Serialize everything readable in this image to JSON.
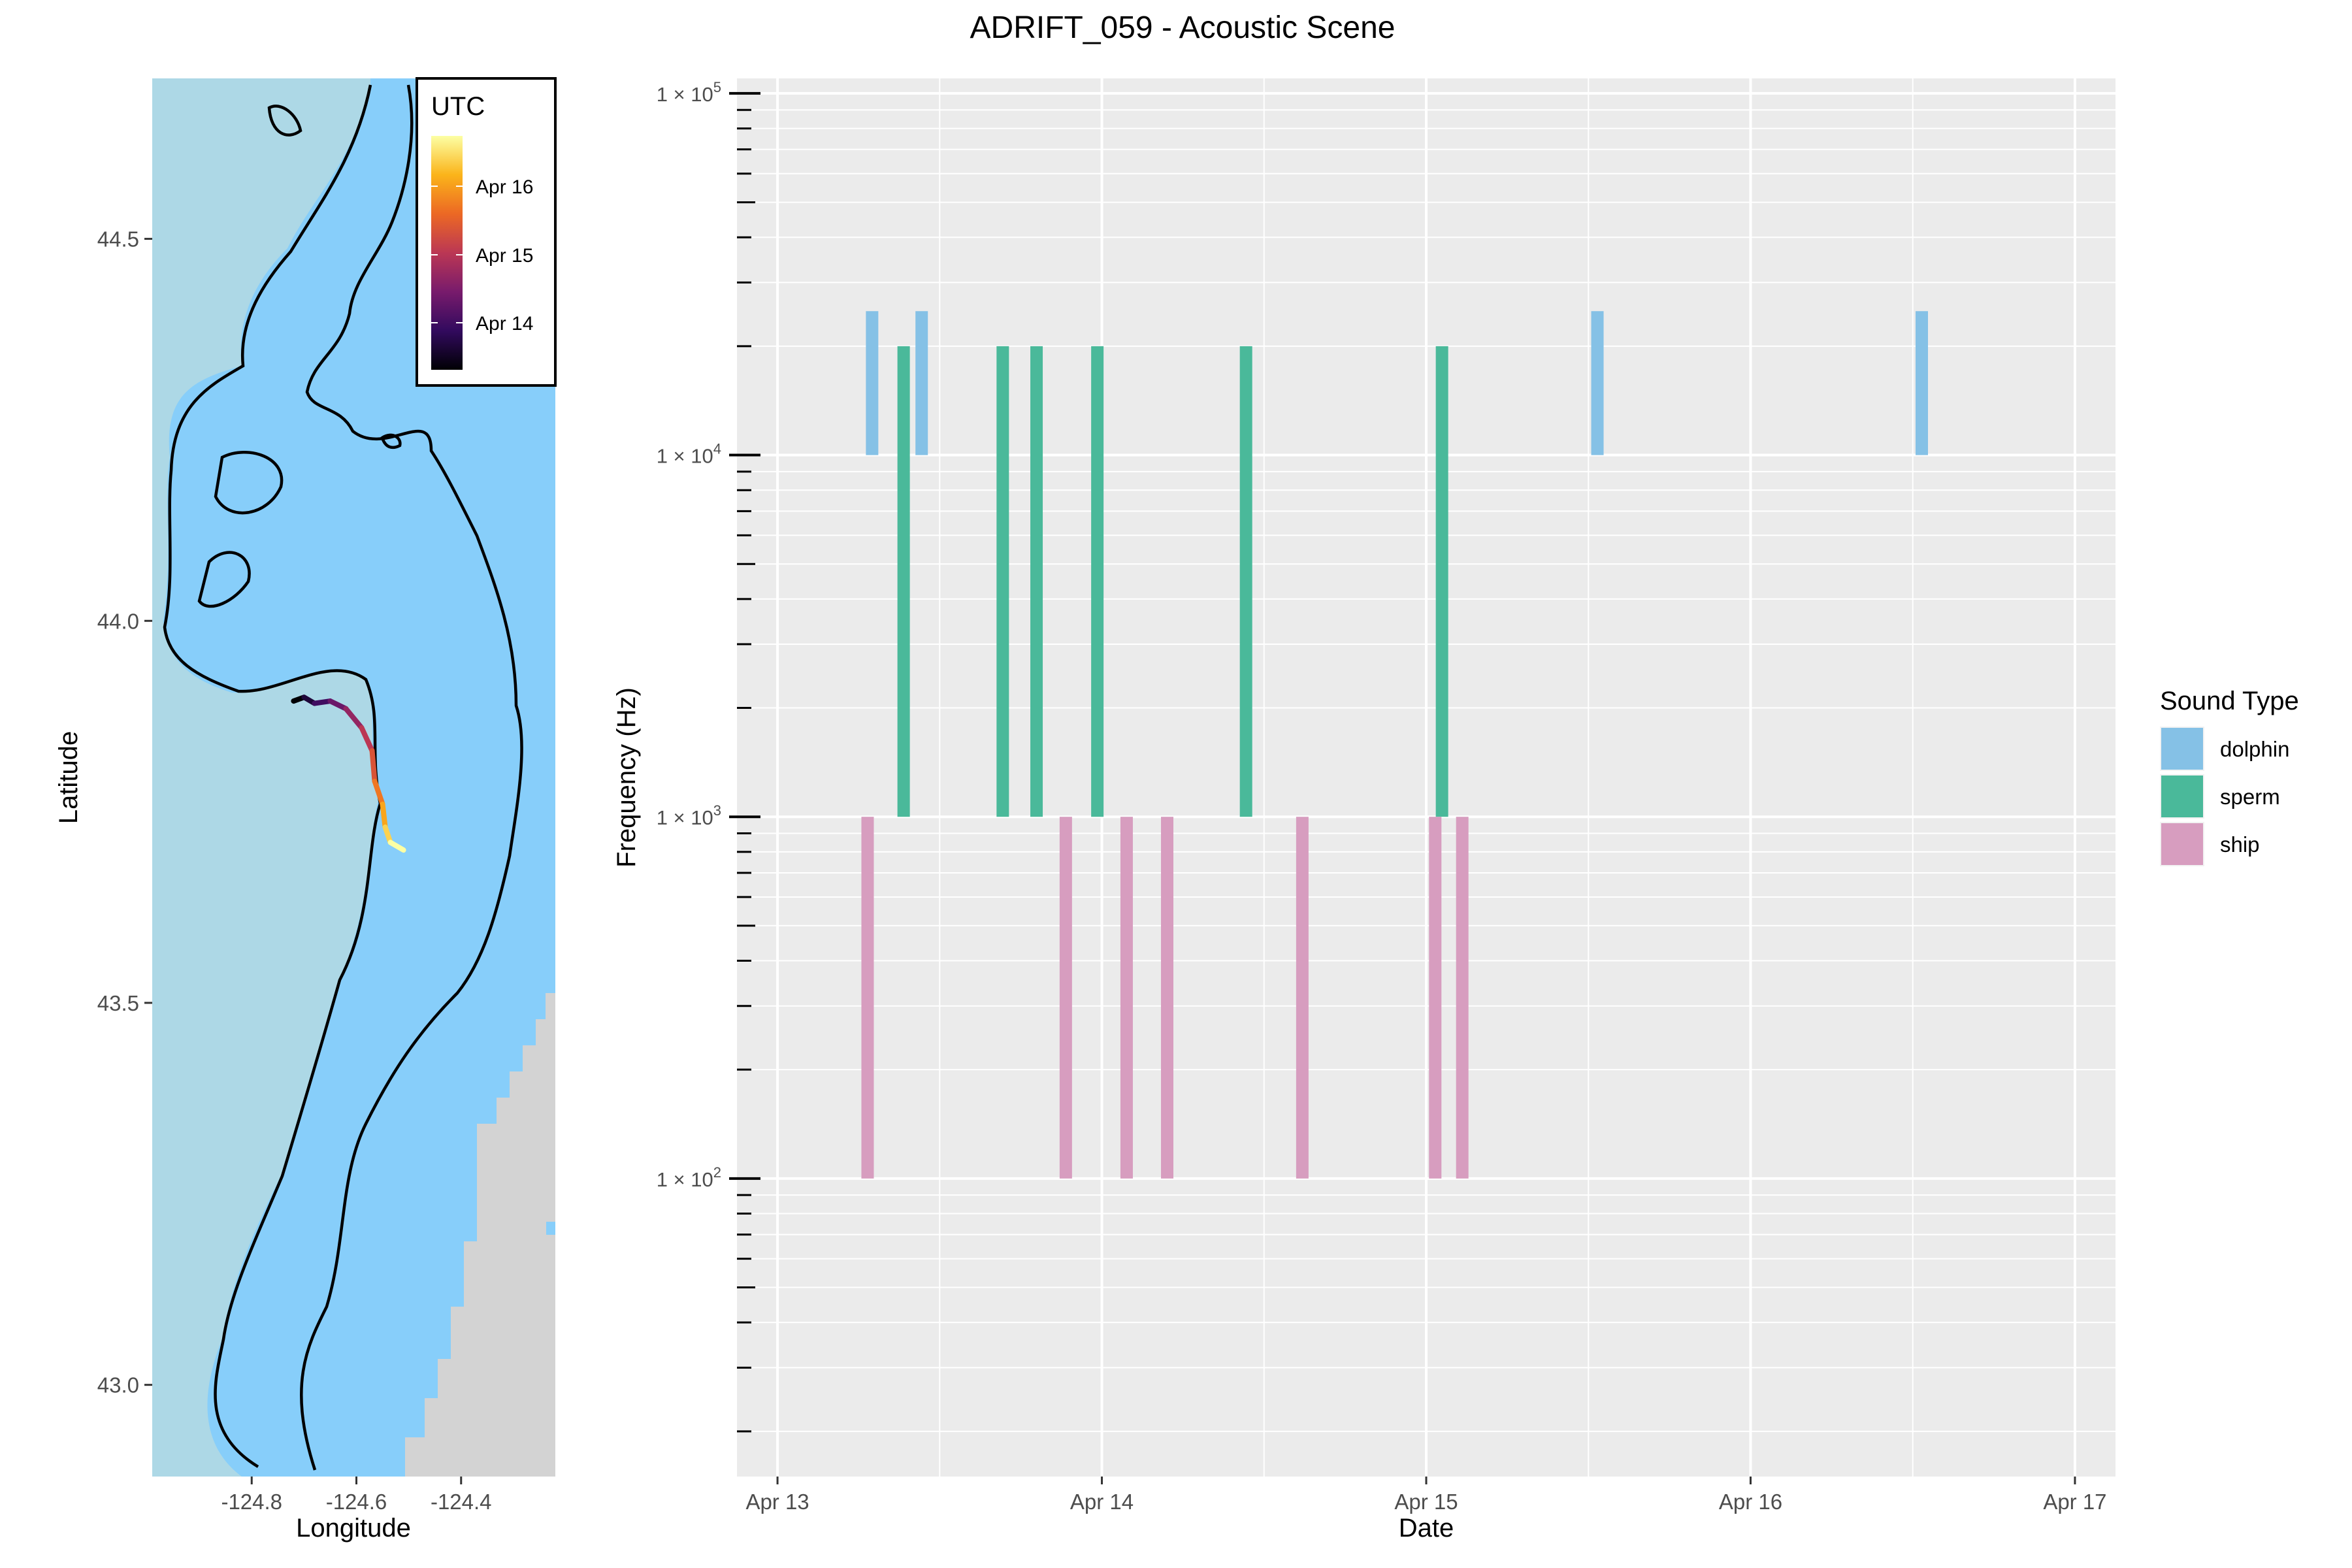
{
  "title": "ADRIFT_059 - Acoustic Scene",
  "colors": {
    "ocean": "#87CEFA",
    "land_shelf": "#ADD8E6",
    "land_grey": "#D3D3D3",
    "panel_bg": "#EBEBEB",
    "grid": "#FFFFFF",
    "dolphin": "#85C1E6",
    "sperm": "#4AB99A",
    "ship": "#D79DBF"
  },
  "chart_data": [
    {
      "type": "map",
      "xlabel": "Longitude",
      "ylabel": "Latitude",
      "xlim": [
        -124.99,
        -124.22
      ],
      "ylim": [
        42.88,
        44.71
      ],
      "x_ticks": [
        {
          "value": -124.8,
          "label": "-124.8"
        },
        {
          "value": -124.6,
          "label": "-124.6"
        },
        {
          "value": -124.4,
          "label": "-124.4"
        }
      ],
      "y_ticks": [
        {
          "value": 43.0,
          "label": "43.0"
        },
        {
          "value": 43.5,
          "label": "43.5"
        },
        {
          "value": 44.0,
          "label": "44.0"
        },
        {
          "value": 44.5,
          "label": "44.5"
        }
      ],
      "legend": {
        "title": "UTC",
        "placement": "top-right inside",
        "labels": [
          "Apr 16",
          "Apr 15",
          "Apr 14"
        ],
        "gradient": [
          "#000004",
          "#320A5E",
          "#781B6C",
          "#BB3754",
          "#EC6824",
          "#FBB41A",
          "#FCFFA4"
        ]
      },
      "drift_track": [
        [
          -124.72,
          43.895
        ],
        [
          -124.7,
          43.9
        ],
        [
          -124.68,
          43.892
        ],
        [
          -124.65,
          43.895
        ],
        [
          -124.62,
          43.885
        ],
        [
          -124.59,
          43.86
        ],
        [
          -124.57,
          43.83
        ],
        [
          -124.565,
          43.79
        ],
        [
          -124.55,
          43.76
        ],
        [
          -124.545,
          43.73
        ],
        [
          -124.535,
          43.71
        ],
        [
          -124.51,
          43.7
        ]
      ]
    },
    {
      "type": "bar",
      "xlabel": "Date",
      "ylabel": "Frequency (Hz)",
      "yscale": "log",
      "xlim": [
        "2024-04-12 21:00",
        "2024-04-17 03:00"
      ],
      "ylim": [
        15,
        110000
      ],
      "x_ticks": [
        {
          "value": "2024-04-13",
          "label": "Apr 13"
        },
        {
          "value": "2024-04-14",
          "label": "Apr 14"
        },
        {
          "value": "2024-04-15",
          "label": "Apr 15"
        },
        {
          "value": "2024-04-16",
          "label": "Apr 16"
        },
        {
          "value": "2024-04-17",
          "label": "Apr 17"
        }
      ],
      "y_ticks": [
        {
          "value": 100,
          "base": "1 × 10",
          "exp": "2"
        },
        {
          "value": 1000,
          "base": "1 × 10",
          "exp": "3"
        },
        {
          "value": 10000,
          "base": "1 × 10",
          "exp": "4"
        },
        {
          "value": 100000,
          "base": "1 × 10",
          "exp": "5"
        }
      ],
      "legend": {
        "title": "Sound Type",
        "placement": "right",
        "entries": [
          "dolphin",
          "sperm",
          "ship"
        ]
      },
      "series": [
        {
          "name": "dolphin",
          "freq_min": 10000,
          "freq_max": 25000,
          "times": [
            "2024-04-13 07:00",
            "2024-04-13 10:40",
            "2024-04-15 12:40",
            "2024-04-16 12:40"
          ]
        },
        {
          "name": "sperm",
          "freq_min": 1000,
          "freq_max": 20000,
          "times": [
            "2024-04-13 09:20",
            "2024-04-13 16:40",
            "2024-04-13 19:10",
            "2024-04-13 23:40",
            "2024-04-14 10:40",
            "2024-04-15 01:10"
          ]
        },
        {
          "name": "ship",
          "freq_min": 100,
          "freq_max": 1000,
          "times": [
            "2024-04-13 06:40",
            "2024-04-13 21:20",
            "2024-04-14 01:50",
            "2024-04-14 04:50",
            "2024-04-14 14:50",
            "2024-04-15 00:40",
            "2024-04-15 02:40"
          ]
        }
      ]
    }
  ]
}
